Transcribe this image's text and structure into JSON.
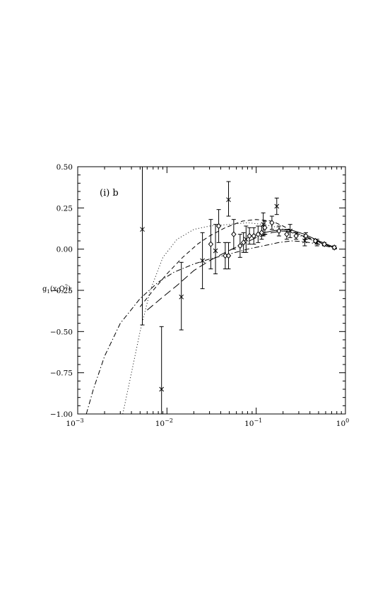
{
  "chart_data": {
    "type": "scatter",
    "title": "",
    "panel_label": "(i)  b",
    "xlabel": "",
    "ylabel": "g1(x,Q2)",
    "ylabel_parts": {
      "base": "g",
      "sub": "1",
      "mid": "(x,Q",
      "sup": "2",
      "end": ")"
    },
    "xscale": "log",
    "xlim": [
      0.001,
      1
    ],
    "ylim": [
      -1.0,
      0.5
    ],
    "grid": false,
    "x_ticks": [
      {
        "value": 0.001,
        "base": "10",
        "exp": "−3"
      },
      {
        "value": 0.01,
        "base": "10",
        "exp": "−2"
      },
      {
        "value": 0.1,
        "base": "10",
        "exp": "−1"
      },
      {
        "value": 1,
        "base": "10",
        "exp": "0"
      }
    ],
    "y_ticks": [
      {
        "value": 0.5,
        "label": "0.50"
      },
      {
        "value": 0.25,
        "label": "0.25"
      },
      {
        "value": 0.0,
        "label": "0.00"
      },
      {
        "value": -0.25,
        "label": "−0.25"
      },
      {
        "value": -0.5,
        "label": "−0.50"
      },
      {
        "value": -0.75,
        "label": "−0.75"
      },
      {
        "value": -1.0,
        "label": "−1.00"
      }
    ],
    "series": [
      {
        "marker": "cross",
        "points": [
          {
            "x": 0.0053,
            "y": 0.12,
            "lo": -0.46,
            "hi": 0.5
          },
          {
            "x": 0.0087,
            "y": -0.85,
            "lo": -1.0,
            "hi": -0.47
          },
          {
            "x": 0.0145,
            "y": -0.29,
            "lo": -0.49,
            "hi": -0.08
          },
          {
            "x": 0.025,
            "y": -0.07,
            "lo": -0.24,
            "hi": 0.1
          },
          {
            "x": 0.035,
            "y": -0.01,
            "lo": -0.15,
            "hi": 0.15
          },
          {
            "x": 0.049,
            "y": 0.3,
            "lo": 0.2,
            "hi": 0.41
          },
          {
            "x": 0.077,
            "y": 0.06,
            "lo": -0.02,
            "hi": 0.14
          },
          {
            "x": 0.12,
            "y": 0.15,
            "lo": 0.08,
            "hi": 0.22
          },
          {
            "x": 0.17,
            "y": 0.26,
            "lo": 0.21,
            "hi": 0.31
          },
          {
            "x": 0.24,
            "y": 0.11,
            "lo": 0.07,
            "hi": 0.15
          },
          {
            "x": 0.35,
            "y": 0.05,
            "lo": 0.02,
            "hi": 0.08
          },
          {
            "x": 0.48,
            "y": 0.04,
            "lo": 0.02,
            "hi": 0.06
          }
        ]
      },
      {
        "marker": "diamond",
        "points": [
          {
            "x": 0.031,
            "y": 0.03,
            "lo": -0.12,
            "hi": 0.18
          },
          {
            "x": 0.038,
            "y": 0.14,
            "lo": 0.04,
            "hi": 0.24
          },
          {
            "x": 0.045,
            "y": -0.04,
            "lo": -0.12,
            "hi": 0.04
          },
          {
            "x": 0.049,
            "y": -0.04,
            "lo": -0.12,
            "hi": 0.04
          },
          {
            "x": 0.056,
            "y": 0.09,
            "lo": 0.0,
            "hi": 0.18
          },
          {
            "x": 0.066,
            "y": 0.02,
            "lo": -0.05,
            "hi": 0.09
          },
          {
            "x": 0.072,
            "y": 0.04,
            "lo": -0.02,
            "hi": 0.1
          },
          {
            "x": 0.084,
            "y": 0.08,
            "lo": 0.03,
            "hi": 0.13
          },
          {
            "x": 0.094,
            "y": 0.08,
            "lo": 0.03,
            "hi": 0.13
          },
          {
            "x": 0.105,
            "y": 0.09,
            "lo": 0.04,
            "hi": 0.14
          },
          {
            "x": 0.115,
            "y": 0.1,
            "lo": 0.06,
            "hi": 0.14
          },
          {
            "x": 0.125,
            "y": 0.13,
            "lo": 0.09,
            "hi": 0.17
          },
          {
            "x": 0.15,
            "y": 0.16,
            "lo": 0.12,
            "hi": 0.2
          },
          {
            "x": 0.18,
            "y": 0.11,
            "lo": 0.08,
            "hi": 0.14
          },
          {
            "x": 0.22,
            "y": 0.09,
            "lo": 0.06,
            "hi": 0.12
          },
          {
            "x": 0.28,
            "y": 0.08,
            "lo": 0.06,
            "hi": 0.1
          },
          {
            "x": 0.36,
            "y": 0.08,
            "lo": 0.06,
            "hi": 0.1
          },
          {
            "x": 0.46,
            "y": 0.05,
            "lo": 0.04,
            "hi": 0.06
          },
          {
            "x": 0.58,
            "y": 0.03,
            "lo": 0.02,
            "hi": 0.04
          },
          {
            "x": 0.75,
            "y": 0.01,
            "lo": 0.0,
            "hi": 0.02
          }
        ]
      }
    ],
    "curves": [
      {
        "style": "dotted",
        "points": [
          [
            0.0032,
            -1.0
          ],
          [
            0.004,
            -0.75
          ],
          [
            0.005,
            -0.5
          ],
          [
            0.0065,
            -0.25
          ],
          [
            0.009,
            -0.05
          ],
          [
            0.013,
            0.06
          ],
          [
            0.02,
            0.12
          ],
          [
            0.03,
            0.14
          ],
          [
            0.05,
            0.15
          ],
          [
            0.08,
            0.16
          ],
          [
            0.12,
            0.15
          ],
          [
            0.18,
            0.13
          ],
          [
            0.25,
            0.1
          ],
          [
            0.35,
            0.07
          ],
          [
            0.5,
            0.04
          ],
          [
            0.7,
            0.015
          ],
          [
            0.8,
            0.005
          ]
        ]
      },
      {
        "style": "dashed",
        "points": [
          [
            0.005,
            -0.35
          ],
          [
            0.007,
            -0.25
          ],
          [
            0.01,
            -0.15
          ],
          [
            0.015,
            -0.05
          ],
          [
            0.022,
            0.03
          ],
          [
            0.03,
            0.08
          ],
          [
            0.045,
            0.13
          ],
          [
            0.07,
            0.17
          ],
          [
            0.1,
            0.18
          ],
          [
            0.15,
            0.17
          ],
          [
            0.2,
            0.14
          ],
          [
            0.3,
            0.09
          ],
          [
            0.45,
            0.05
          ],
          [
            0.6,
            0.025
          ],
          [
            0.8,
            0.005
          ]
        ]
      },
      {
        "style": "dash-dot",
        "points": [
          [
            0.00125,
            -1.0
          ],
          [
            0.0015,
            -0.85
          ],
          [
            0.002,
            -0.65
          ],
          [
            0.003,
            -0.45
          ],
          [
            0.005,
            -0.3
          ],
          [
            0.008,
            -0.2
          ],
          [
            0.012,
            -0.14
          ],
          [
            0.02,
            -0.09
          ],
          [
            0.03,
            -0.06
          ],
          [
            0.05,
            -0.03
          ],
          [
            0.08,
            0.0
          ],
          [
            0.12,
            0.02
          ],
          [
            0.18,
            0.04
          ],
          [
            0.25,
            0.05
          ],
          [
            0.35,
            0.045
          ],
          [
            0.5,
            0.03
          ],
          [
            0.7,
            0.01
          ],
          [
            0.8,
            0.003
          ]
        ]
      },
      {
        "style": "long-dash",
        "points": [
          [
            0.006,
            -0.37
          ],
          [
            0.009,
            -0.29
          ],
          [
            0.013,
            -0.22
          ],
          [
            0.02,
            -0.13
          ],
          [
            0.03,
            -0.07
          ],
          [
            0.045,
            -0.02
          ],
          [
            0.07,
            0.03
          ],
          [
            0.1,
            0.07
          ],
          [
            0.15,
            0.1
          ],
          [
            0.2,
            0.11
          ],
          [
            0.25,
            0.105
          ],
          [
            0.35,
            0.08
          ],
          [
            0.5,
            0.045
          ],
          [
            0.65,
            0.02
          ],
          [
            0.8,
            0.003
          ]
        ]
      },
      {
        "style": "solid",
        "points": [
          [
            0.1,
            0.09
          ],
          [
            0.15,
            0.11
          ],
          [
            0.2,
            0.12
          ],
          [
            0.25,
            0.115
          ],
          [
            0.35,
            0.09
          ],
          [
            0.5,
            0.05
          ],
          [
            0.65,
            0.025
          ],
          [
            0.8,
            0.005
          ]
        ]
      }
    ]
  }
}
